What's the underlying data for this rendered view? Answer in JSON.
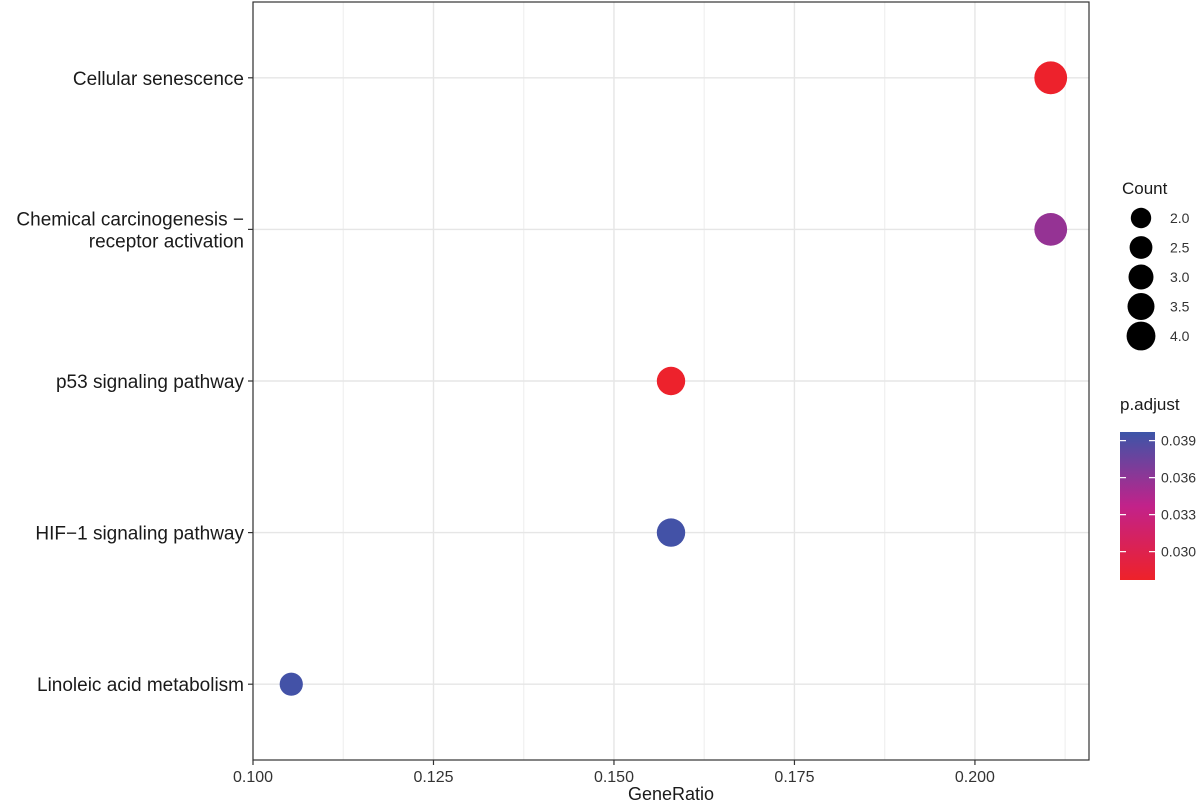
{
  "chart_data": {
    "type": "scatter",
    "xlabel": "GeneRatio",
    "ylabel": "",
    "xlim": [
      0.1,
      0.2158
    ],
    "x_ticks": [
      "0.100",
      "0.125",
      "0.150",
      "0.175",
      "0.200"
    ],
    "x_tick_values": [
      0.1,
      0.125,
      0.15,
      0.175,
      0.2
    ],
    "grid": true,
    "categories": [
      [
        "Cellular senescence"
      ],
      [
        "Chemical carcinogenesis −",
        "receptor activation"
      ],
      [
        "p53 signaling pathway"
      ],
      [
        "HIF−1 signaling pathway"
      ],
      [
        "Linoleic acid metabolism"
      ]
    ],
    "points": [
      {
        "x": 0.2105,
        "count": 4,
        "p_adjust": 0.0279
      },
      {
        "x": 0.2105,
        "count": 4,
        "p_adjust": 0.0357
      },
      {
        "x": 0.1579,
        "count": 3,
        "p_adjust": 0.0279
      },
      {
        "x": 0.1579,
        "count": 3,
        "p_adjust": 0.0394
      },
      {
        "x": 0.1053,
        "count": 2,
        "p_adjust": 0.0394
      }
    ],
    "size_legend": {
      "title": "Count",
      "labels": [
        "2.0",
        "2.5",
        "3.0",
        "3.5",
        "4.0"
      ],
      "values": [
        2.0,
        2.5,
        3.0,
        3.5,
        4.0
      ]
    },
    "color_legend": {
      "title": "p.adjust",
      "labels": [
        "0.039",
        "0.036",
        "0.033",
        "0.030"
      ],
      "values": [
        0.039,
        0.036,
        0.033,
        0.03
      ],
      "range": [
        0.0277,
        0.0397
      ],
      "low_color": "#ee2229",
      "mid_color": "#c2228a",
      "high_color": "#3c55a8"
    },
    "legend_position": "right"
  }
}
